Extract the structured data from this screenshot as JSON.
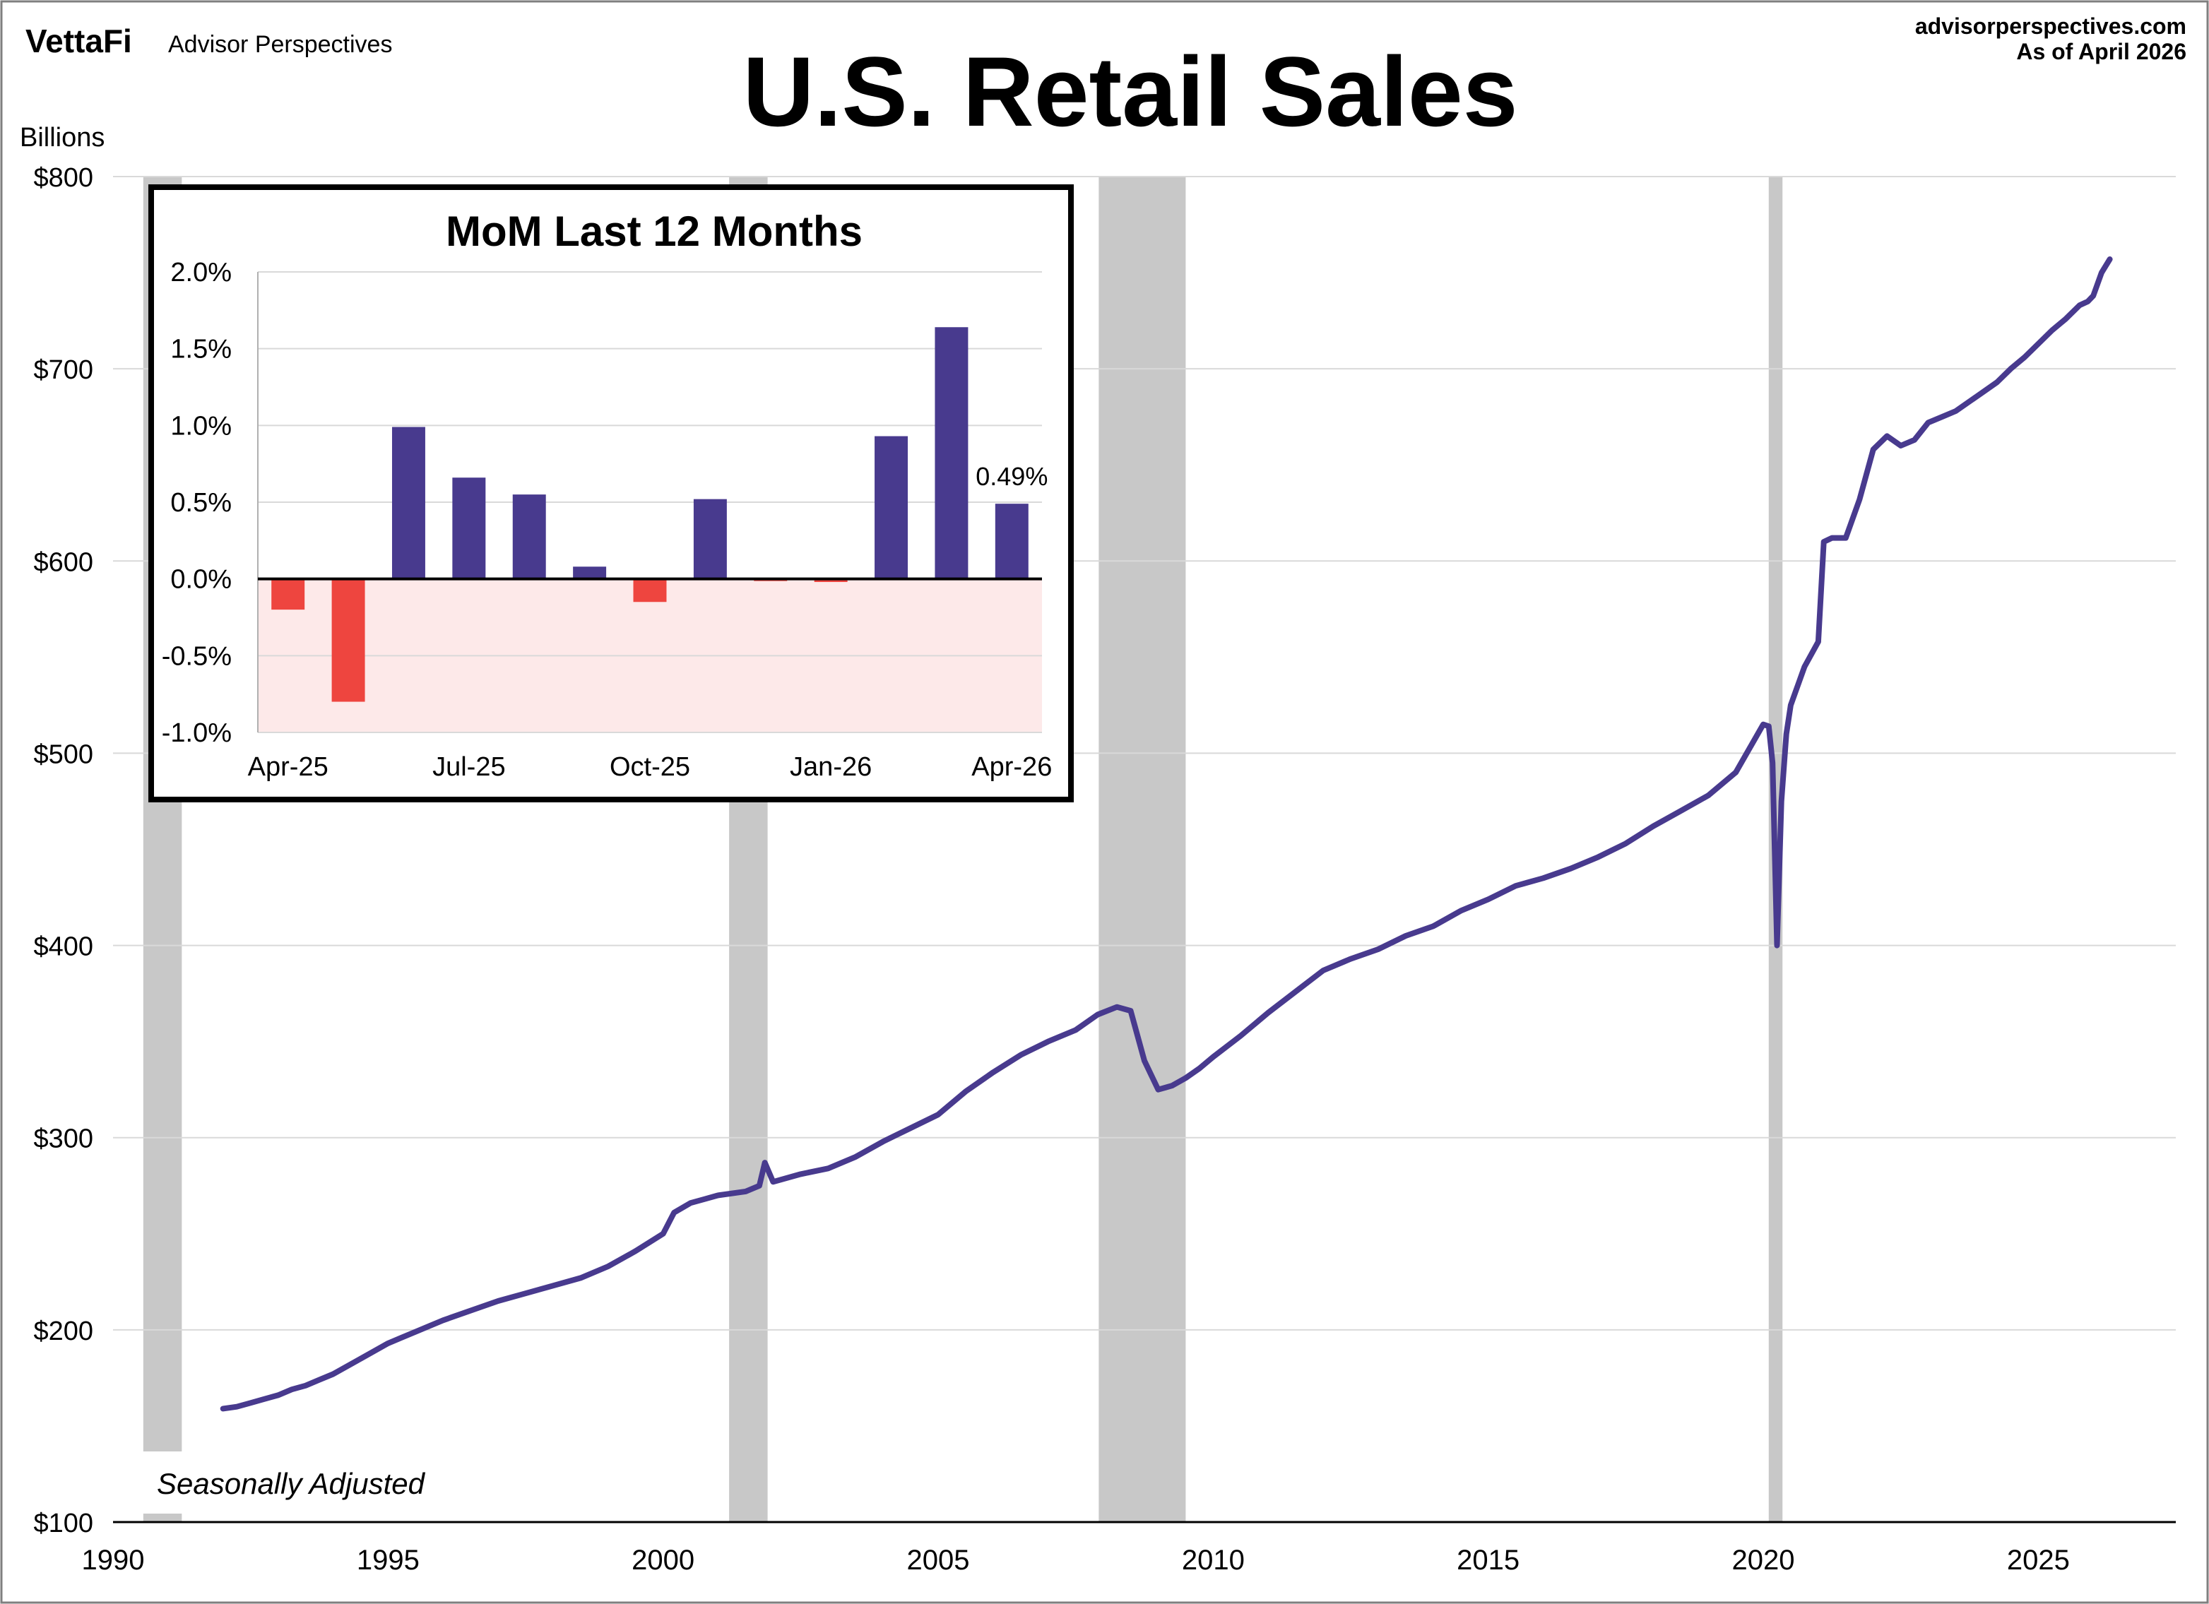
{
  "header": {
    "brand_vettafi": "VettaFi",
    "brand_ap": "Advisor Perspectives",
    "title": "U.S. Retail Sales",
    "site": "advisorperspectives.com",
    "as_of": "As of April 2026"
  },
  "chart_data": [
    {
      "type": "line",
      "title": "U.S. Retail Sales",
      "ylabel": "Billions",
      "annotation": "Seasonally Adjusted",
      "xlim": [
        1990,
        2027.5
      ],
      "ylim": [
        100,
        800
      ],
      "x_ticks": [
        1990,
        1995,
        2000,
        2005,
        2010,
        2015,
        2020,
        2025
      ],
      "y_ticks": [
        100,
        200,
        300,
        400,
        500,
        600,
        700,
        800
      ],
      "y_tick_labels": [
        "$100",
        "$200",
        "$300",
        "$400",
        "$500",
        "$600",
        "$700",
        "$800"
      ],
      "grid": "horizontal",
      "line_color": "#483a8e",
      "recession_color": "#c8c8c8",
      "recessions": [
        [
          1990.55,
          1991.25
        ],
        [
          2001.2,
          2001.9
        ],
        [
          2007.92,
          2009.5
        ],
        [
          2020.1,
          2020.35
        ]
      ],
      "series": [
        {
          "x": [
            1992.0,
            1992.25,
            1992.5,
            1992.75,
            1993.0,
            1993.25,
            1993.5,
            1993.75,
            1994.0,
            1994.5,
            1995.0,
            1995.25,
            1995.5,
            1995.75,
            1996.0,
            1996.5,
            1997.0,
            1997.5,
            1998.0,
            1998.5,
            1999.0,
            1999.5,
            2000.0,
            2000.2,
            2000.5,
            2000.75,
            2001.0,
            2001.5,
            2001.75,
            2001.85,
            2002.0,
            2002.5,
            2003.0,
            2003.5,
            2004.0,
            2004.5,
            2005.0,
            2005.5,
            2006.0,
            2006.5,
            2007.0,
            2007.5,
            2007.9,
            2008.25,
            2008.5,
            2008.75,
            2009.0,
            2009.25,
            2009.5,
            2009.75,
            2010.0,
            2010.5,
            2011.0,
            2011.5,
            2012.0,
            2012.5,
            2013.0,
            2013.5,
            2014.0,
            2014.5,
            2015.0,
            2015.5,
            2016.0,
            2016.5,
            2017.0,
            2017.5,
            2018.0,
            2018.5,
            2019.0,
            2019.5,
            2020.0,
            2020.1,
            2020.17,
            2020.25,
            2020.33,
            2020.42,
            2020.5,
            2020.75,
            2021.0,
            2021.1,
            2021.25,
            2021.5,
            2021.75,
            2022.0,
            2022.25,
            2022.5,
            2022.75,
            2023.0,
            2023.25,
            2023.5,
            2023.75,
            2024.0,
            2024.25,
            2024.5,
            2024.75,
            2025.0,
            2025.25,
            2025.5,
            2025.75,
            2025.9,
            2026.0,
            2026.15,
            2026.3
          ],
          "values": [
            159,
            160,
            162,
            164,
            166,
            169,
            171,
            174,
            177,
            185,
            193,
            196,
            199,
            202,
            205,
            210,
            215,
            219,
            223,
            227,
            233,
            241,
            250,
            261,
            266,
            268,
            270,
            272,
            275,
            287,
            277,
            281,
            284,
            290,
            298,
            305,
            312,
            324,
            334,
            343,
            350,
            356,
            364,
            368,
            366,
            340,
            325,
            327,
            331,
            336,
            342,
            353,
            365,
            376,
            387,
            393,
            398,
            405,
            410,
            418,
            424,
            431,
            435,
            440,
            446,
            453,
            462,
            470,
            478,
            490,
            515,
            514,
            495,
            400,
            475,
            510,
            525,
            545,
            558,
            610,
            612,
            612,
            632,
            658,
            665,
            660,
            663,
            672,
            675,
            678,
            683,
            688,
            693,
            700,
            706,
            713,
            720,
            726,
            733,
            735,
            738,
            750,
            757
          ]
        }
      ]
    },
    {
      "type": "bar",
      "title": "MoM Last 12 Months",
      "categories": [
        "Apr-25",
        "May-25",
        "Jun-25",
        "Jul-25",
        "Aug-25",
        "Sep-25",
        "Oct-25",
        "Nov-25",
        "Dec-25",
        "Jan-26",
        "Feb-26",
        "Mar-26",
        "Apr-26"
      ],
      "x_tick_labels": [
        "Apr-25",
        "Jul-25",
        "Oct-25",
        "Jan-26",
        "Apr-26"
      ],
      "values": [
        -0.2,
        -0.8,
        0.99,
        0.66,
        0.55,
        0.08,
        -0.15,
        0.52,
        -0.01,
        -0.02,
        0.93,
        1.64,
        0.49
      ],
      "ylim": [
        -1.0,
        2.0
      ],
      "y_ticks": [
        -1.0,
        -0.5,
        0.0,
        0.5,
        1.0,
        1.5,
        2.0
      ],
      "y_tick_labels": [
        "-1.0%",
        "-0.5%",
        "0.0%",
        "0.5%",
        "1.0%",
        "1.5%",
        "2.0%"
      ],
      "data_label": "0.49%",
      "positive_color": "#483a8e",
      "negative_color": "#ee453f",
      "negative_zone_color": "#fde9e9"
    }
  ]
}
